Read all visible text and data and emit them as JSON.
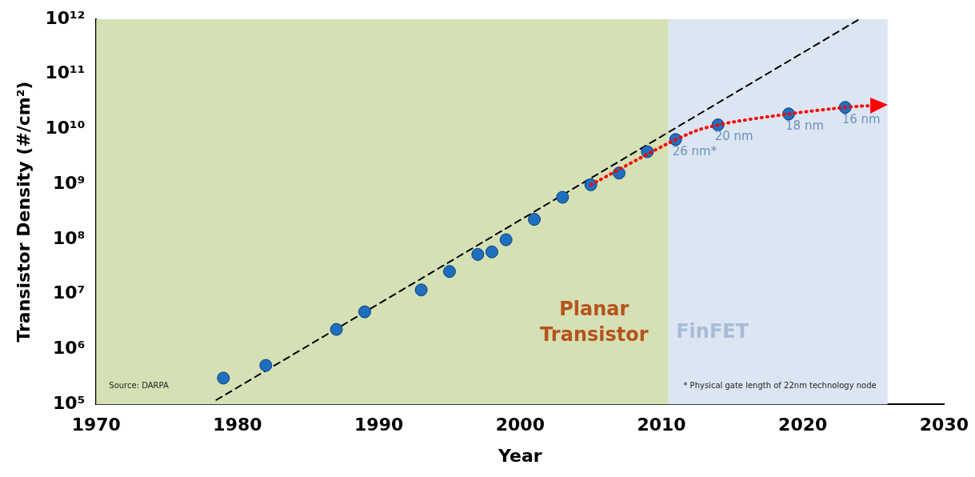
{
  "chart_data": {
    "type": "scatter",
    "xlabel": "Year",
    "ylabel": "Transistor Density (#/cm²)",
    "log": "y",
    "grid": false,
    "legend": false,
    "xlim": [
      1970,
      2030
    ],
    "xticks": [
      1970,
      1980,
      1990,
      2000,
      2010,
      2020,
      2030
    ],
    "ylim": [
      100000,
      1000000000000
    ],
    "yticks": [
      {
        "value": 100000,
        "label": "10⁵"
      },
      {
        "value": 1000000,
        "label": "10⁶"
      },
      {
        "value": 10000000,
        "label": "10⁷"
      },
      {
        "value": 100000000,
        "label": "10⁸"
      },
      {
        "value": 1000000000,
        "label": "10⁹"
      },
      {
        "value": 10000000000,
        "label": "10¹⁰"
      },
      {
        "value": 100000000000,
        "label": "10¹¹"
      },
      {
        "value": 1000000000000,
        "label": "10¹²"
      }
    ],
    "bands": [
      {
        "axis": "x",
        "from": 1970,
        "to": 2010.5,
        "label": "Planar Transistor",
        "color": "#d5e0b5"
      },
      {
        "axis": "x",
        "from": 2010.5,
        "to": 2026,
        "label": "FinFET",
        "color": "#dce6f2"
      }
    ],
    "series": [
      {
        "type": "line",
        "color": "#000000",
        "line_style": "dashed",
        "marker": "none",
        "x": [
          1978.5,
          2024
        ],
        "values": [
          120000,
          1000000000000
        ]
      },
      {
        "type": "scatter",
        "color": "#1f6fbf",
        "marker": "circle",
        "x": [
          1979,
          1982,
          1987,
          1989,
          1993,
          1995,
          1997,
          1998,
          1999,
          2001,
          2003,
          2005,
          2007,
          2009,
          2011,
          2014,
          2019,
          2023
        ],
        "values": [
          300000,
          510000,
          2300000,
          4800000,
          12000000,
          26000000,
          53000000,
          59000000,
          98000000,
          230000000,
          580000000,
          980000000,
          1600000000,
          3900000000,
          6500000000,
          12000000000,
          19000000000,
          25000000000
        ]
      }
    ],
    "annotations": [
      "Source: DARPA",
      "* Physical gate length of 22nm technology node",
      {
        "text": "26 nm*",
        "x": 2011,
        "y": 6500000000
      },
      {
        "text": "20 nm",
        "x": 2014,
        "y": 12000000000
      },
      {
        "text": "18 nm",
        "x": 2019,
        "y": 19000000000
      },
      {
        "text": "16 nm",
        "x": 2023,
        "y": 25000000000
      }
    ]
  }
}
